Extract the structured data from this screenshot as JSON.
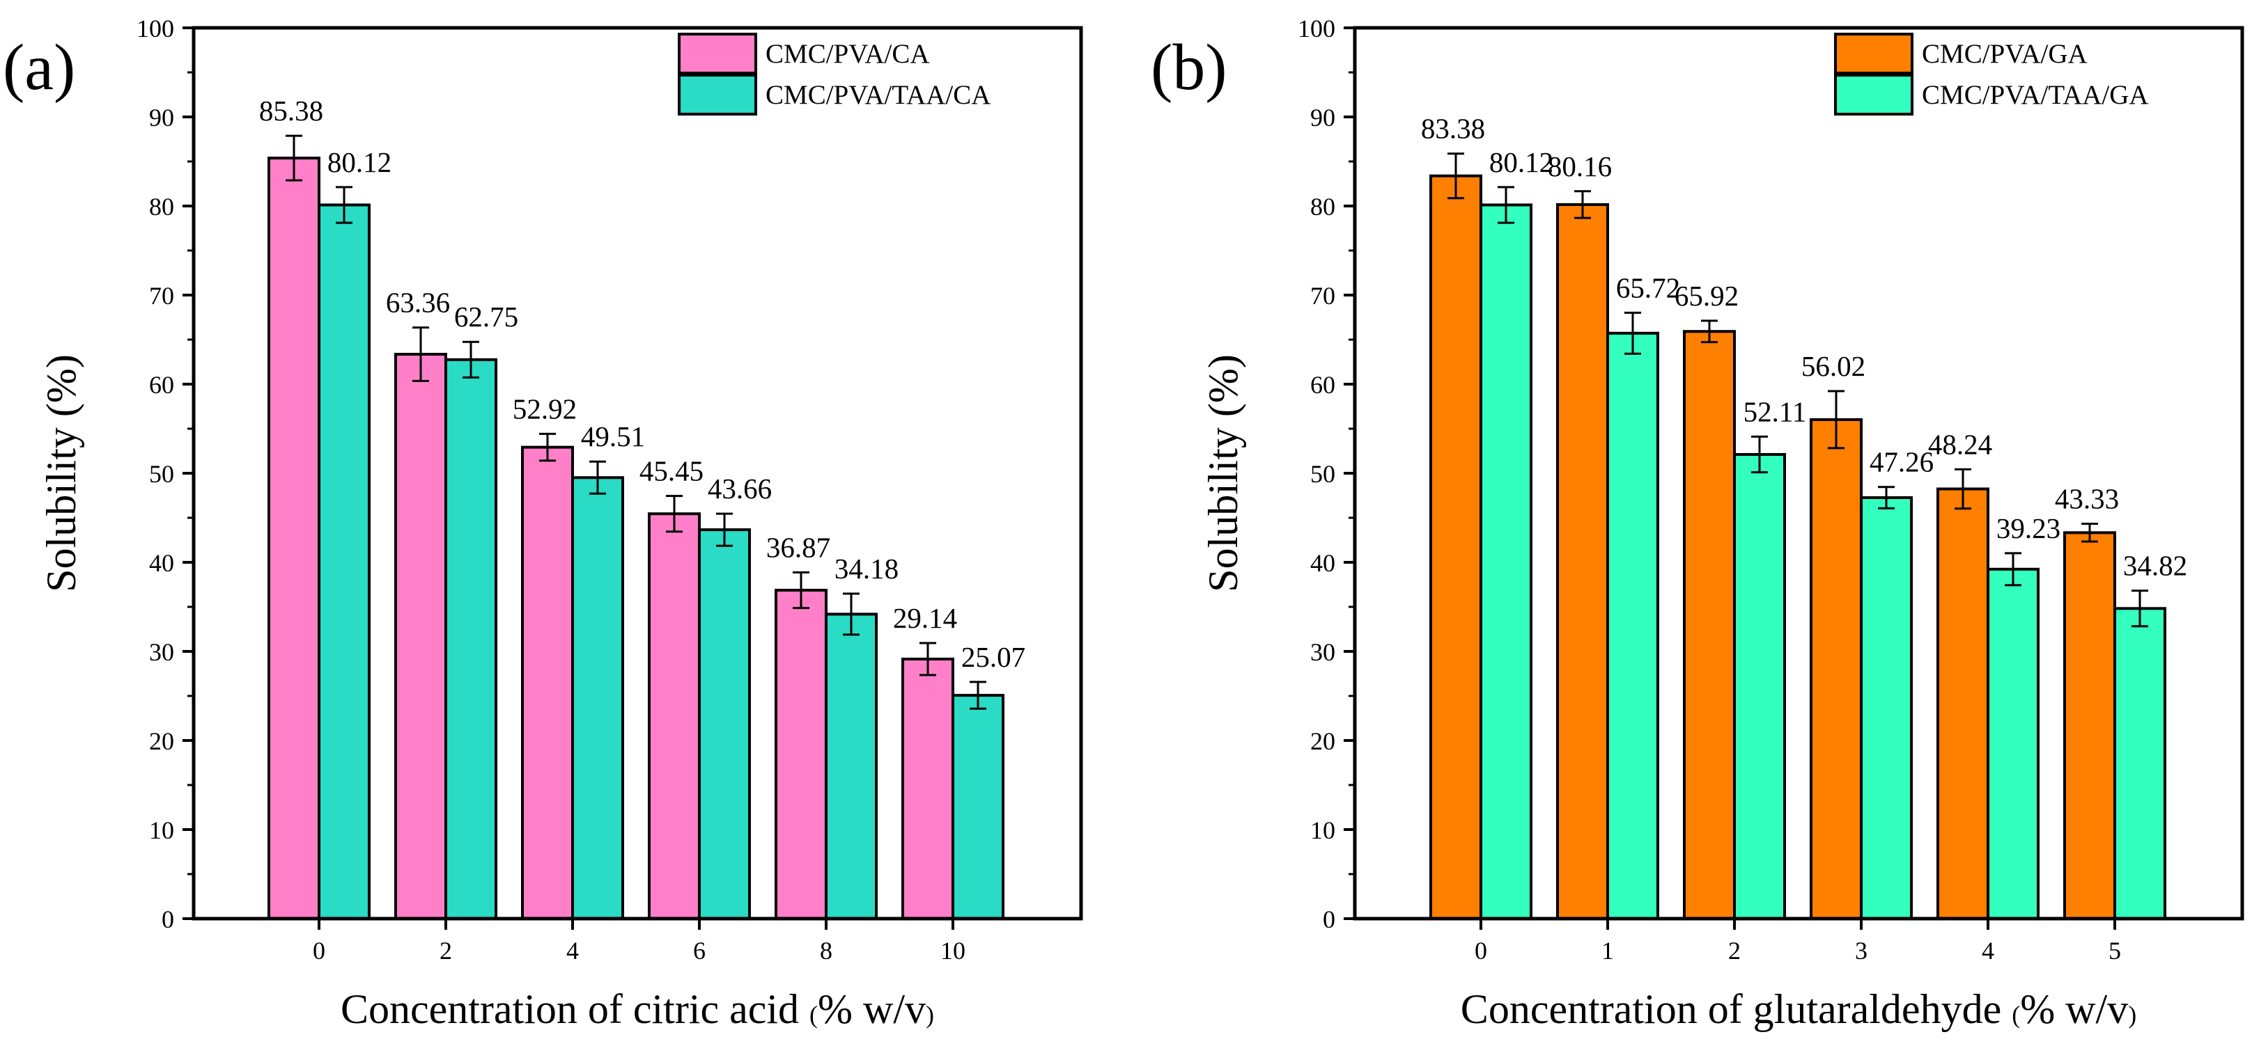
{
  "chart_data": [
    {
      "type": "bar",
      "panel_label": "(a)",
      "categories": [
        "0",
        "2",
        "4",
        "6",
        "8",
        "10"
      ],
      "series": [
        {
          "name": "CMC/PVA/CA",
          "color": "#ff80c8",
          "values": [
            85.38,
            63.36,
            52.92,
            45.45,
            36.87,
            29.14
          ],
          "errors": [
            2.5,
            3.0,
            1.5,
            2.0,
            2.0,
            1.8
          ],
          "labels": [
            "85.38",
            "63.36",
            "52.92",
            "45.45",
            "36.87",
            "29.14"
          ]
        },
        {
          "name": "CMC/PVA/TAA/CA",
          "color": "#2adbc5",
          "values": [
            80.12,
            62.75,
            49.51,
            43.66,
            34.18,
            25.07
          ],
          "errors": [
            2.0,
            2.0,
            1.8,
            1.8,
            2.3,
            1.5
          ],
          "labels": [
            "80.12",
            "62.75",
            "49.51",
            "43.66",
            "34.18",
            "25.07"
          ]
        }
      ],
      "title": "",
      "ylabel": "Solubility (%)",
      "xlabel": "Concentration of citric acid ",
      "xlabel_paren_open": "(",
      "xlabel_unit": "% w/v",
      "xlabel_paren_close": ")",
      "ylim": [
        0,
        100
      ],
      "yticks": [
        "0",
        "10",
        "20",
        "30",
        "40",
        "50",
        "60",
        "70",
        "80",
        "90",
        "100"
      ],
      "legend_position": "top-right"
    },
    {
      "type": "bar",
      "panel_label": "(b)",
      "categories": [
        "0",
        "1",
        "2",
        "3",
        "4",
        "5"
      ],
      "series": [
        {
          "name": "CMC/PVA/GA",
          "color": "#ff7f00",
          "values": [
            83.38,
            80.16,
            65.92,
            56.02,
            48.24,
            43.33
          ],
          "errors": [
            2.5,
            1.5,
            1.2,
            3.2,
            2.2,
            1.0
          ],
          "labels": [
            "83.38",
            "80.16",
            "65.92",
            "56.02",
            "48.24",
            "43.33"
          ]
        },
        {
          "name": "CMC/PVA/TAA/GA",
          "color": "#33ffbe",
          "values": [
            80.12,
            65.72,
            52.11,
            47.26,
            39.23,
            34.82
          ],
          "errors": [
            2.0,
            2.3,
            2.0,
            1.2,
            1.8,
            2.0
          ],
          "labels": [
            "80.12",
            "65.72",
            "52.11",
            "47.26",
            "39.23",
            "34.82"
          ]
        }
      ],
      "title": "",
      "ylabel": "Solubility (%)",
      "xlabel": "Concentration of glutaraldehyde ",
      "xlabel_paren_open": "(",
      "xlabel_unit": "% w/v",
      "xlabel_paren_close": ")",
      "ylim": [
        0,
        100
      ],
      "yticks": [
        "0",
        "10",
        "20",
        "30",
        "40",
        "50",
        "60",
        "70",
        "80",
        "90",
        "100"
      ],
      "legend_position": "top-right"
    }
  ]
}
